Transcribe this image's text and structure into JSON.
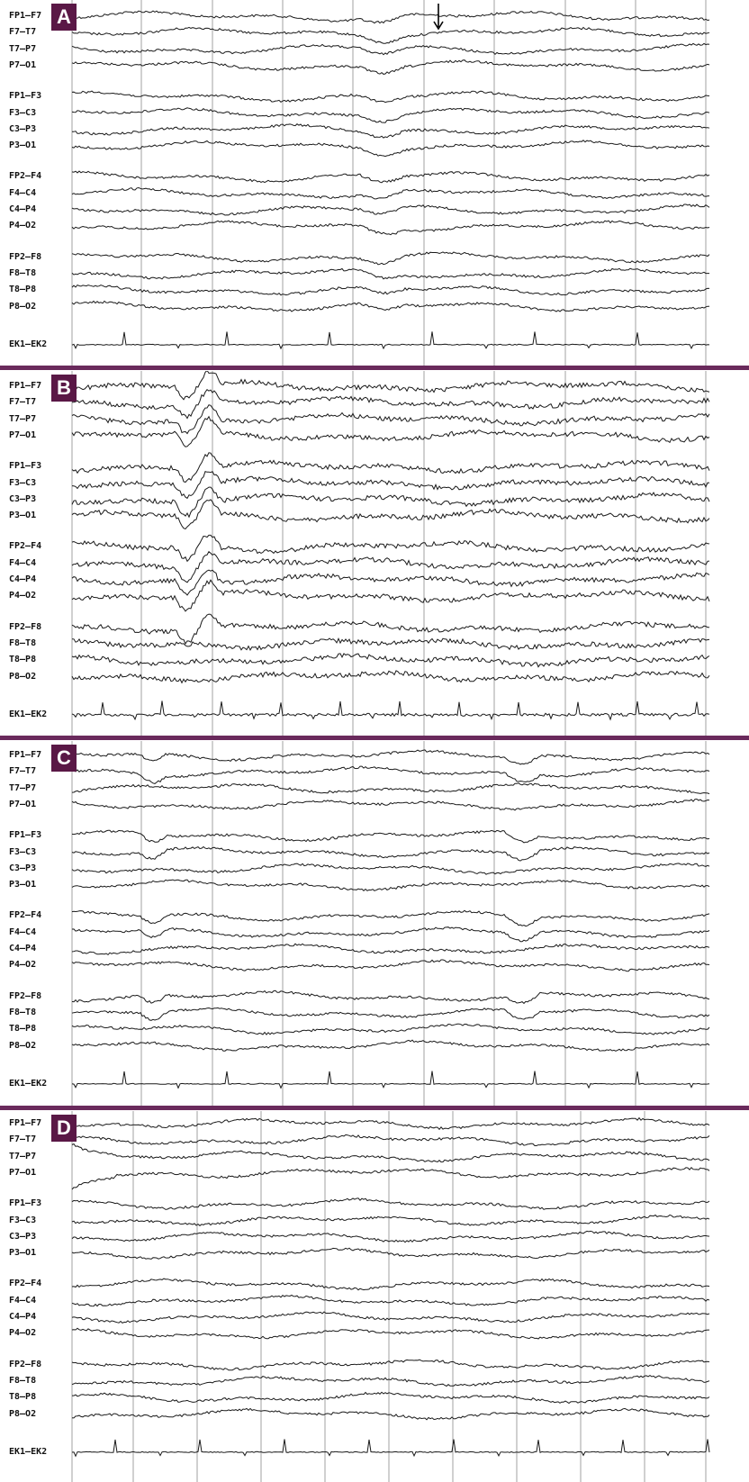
{
  "colors": {
    "panel_label_bg": "#5a1846",
    "divider": "#6a2a5c",
    "trace": "#1a1a1a",
    "grid": "#8a8a8a"
  },
  "panels": [
    {
      "label": "A",
      "arrow": true,
      "channels": [
        "FP1–F7",
        "F7–T7",
        "T7–P7",
        "P7–O1",
        "FP1–F3",
        "F3–C3",
        "C3–P3",
        "P3–O1",
        "FP2–F4",
        "F4–C4",
        "C4–P4",
        "P4–O2",
        "FP2–F8",
        "F8–T8",
        "T8–P8",
        "P8–O2",
        "EK1–EK2"
      ]
    },
    {
      "label": "B",
      "arrow": false,
      "channels": [
        "FP1–F7",
        "F7–T7",
        "T7–P7",
        "P7–O1",
        "FP1–F3",
        "F3–C3",
        "C3–P3",
        "P3–O1",
        "FP2–F4",
        "F4–C4",
        "C4–P4",
        "P4–O2",
        "FP2–F8",
        "F8–T8",
        "T8–P8",
        "P8–O2",
        "EK1–EK2"
      ]
    },
    {
      "label": "C",
      "arrow": false,
      "channels": [
        "FP1–F7",
        "F7–T7",
        "T7–P7",
        "P7–O1",
        "FP1–F3",
        "F3–C3",
        "C3–P3",
        "P3–O1",
        "FP2–F4",
        "F4–C4",
        "C4–P4",
        "P4–O2",
        "FP2–F8",
        "F8–T8",
        "T8–P8",
        "P8–O2",
        "EK1–EK2"
      ]
    },
    {
      "label": "D",
      "arrow": false,
      "channels": [
        "FP1–F7",
        "F7–T7",
        "T7–P7",
        "P7–O1",
        "FP1–F3",
        "F3–C3",
        "C3–P3",
        "P3–O1",
        "FP2–F4",
        "F4–C4",
        "C4–P4",
        "P4–O2",
        "FP2–F8",
        "F8–T8",
        "T8–P8",
        "P8–O2",
        "EK1–EK2"
      ]
    }
  ]
}
